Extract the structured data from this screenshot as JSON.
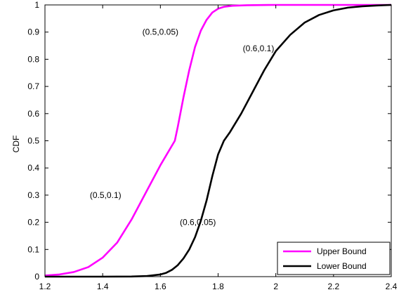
{
  "chart_data": {
    "type": "line",
    "title": "",
    "xlabel": "",
    "ylabel": "CDF",
    "xlim": [
      1.2,
      2.4
    ],
    "ylim": [
      0,
      1
    ],
    "grid": false,
    "legend_position": "bottom-right",
    "xticks": [
      1.2,
      1.4,
      1.6,
      1.8,
      2,
      2.2,
      2.4
    ],
    "xtick_labels": [
      "1.2",
      "1.4",
      "1.6",
      "1.8",
      "2",
      "2.2",
      "2.4"
    ],
    "yticks": [
      0,
      0.1,
      0.2,
      0.3,
      0.4,
      0.5,
      0.6,
      0.7,
      0.8,
      0.9,
      1
    ],
    "ytick_labels": [
      "0",
      "0.1",
      "0.2",
      "0.3",
      "0.4",
      "0.5",
      "0.6",
      "0.7",
      "0.8",
      "0.9",
      "1"
    ],
    "series": [
      {
        "name": "Upper Bound",
        "color": "#ff00ff",
        "x": [
          1.2,
          1.25,
          1.3,
          1.35,
          1.4,
          1.45,
          1.5,
          1.55,
          1.6,
          1.65,
          1.66,
          1.68,
          1.7,
          1.72,
          1.74,
          1.76,
          1.78,
          1.8,
          1.82,
          1.85,
          1.9,
          2.0,
          2.2,
          2.4
        ],
        "y": [
          0.004,
          0.008,
          0.017,
          0.035,
          0.07,
          0.125,
          0.21,
          0.31,
          0.41,
          0.5,
          0.55,
          0.66,
          0.76,
          0.845,
          0.905,
          0.945,
          0.972,
          0.986,
          0.993,
          0.997,
          0.999,
          1.0,
          1.0,
          1.0
        ]
      },
      {
        "name": "Lower Bound",
        "color": "#000000",
        "x": [
          1.2,
          1.4,
          1.5,
          1.55,
          1.6,
          1.62,
          1.64,
          1.66,
          1.68,
          1.7,
          1.72,
          1.74,
          1.76,
          1.78,
          1.8,
          1.82,
          1.84,
          1.88,
          1.92,
          1.96,
          2.0,
          2.05,
          2.1,
          2.15,
          2.2,
          2.25,
          2.3,
          2.35,
          2.4
        ],
        "y": [
          0.0,
          0.0,
          0.0005,
          0.002,
          0.008,
          0.014,
          0.025,
          0.042,
          0.067,
          0.1,
          0.145,
          0.205,
          0.28,
          0.37,
          0.45,
          0.5,
          0.53,
          0.6,
          0.68,
          0.76,
          0.83,
          0.89,
          0.935,
          0.963,
          0.98,
          0.99,
          0.995,
          0.998,
          1.0
        ]
      }
    ],
    "annotations": [
      {
        "text": "(0.5,0.05)",
        "x": 1.6,
        "y": 0.9
      },
      {
        "text": "(0.6,0.1)",
        "x": 1.94,
        "y": 0.84
      },
      {
        "text": "(0.5,0.1)",
        "x": 1.41,
        "y": 0.3
      },
      {
        "text": "(0.6,0.05)",
        "x": 1.73,
        "y": 0.2
      }
    ]
  }
}
